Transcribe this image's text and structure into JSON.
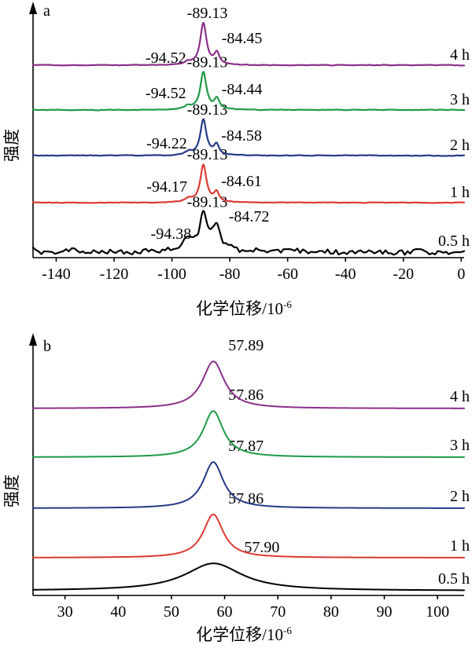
{
  "chart_data": [
    {
      "panel": "a",
      "type": "line",
      "ylabel": "强度",
      "xlabel": {
        "text": "化学位移/10",
        "sup": "-6"
      },
      "xlim": [
        -148,
        1
      ],
      "xticks": [
        -140,
        -120,
        -100,
        -80,
        -60,
        -40,
        -20,
        0
      ],
      "grid": false,
      "series": [
        {
          "name": "4 h",
          "color": "#8B2F8B",
          "peaks": [
            {
              "x": -94.52,
              "label": "-94.52",
              "intensity": 0.06,
              "fwhm": 3.0
            },
            {
              "x": -89.13,
              "label": "-89.13",
              "intensity": 1.0,
              "fwhm": 2.6
            },
            {
              "x": -84.45,
              "label": "-84.45",
              "intensity": 0.28,
              "fwhm": 2.2
            }
          ]
        },
        {
          "name": "3 h",
          "color": "#1F9A48",
          "peaks": [
            {
              "x": -94.52,
              "label": "-94.52",
              "intensity": 0.08,
              "fwhm": 3.0
            },
            {
              "x": -89.13,
              "label": "-89.13",
              "intensity": 0.9,
              "fwhm": 2.6
            },
            {
              "x": -84.44,
              "label": "-84.44",
              "intensity": 0.25,
              "fwhm": 2.2
            }
          ]
        },
        {
          "name": "2 h",
          "color": "#243A86",
          "peaks": [
            {
              "x": -94.22,
              "label": "-94.22",
              "intensity": 0.08,
              "fwhm": 3.0
            },
            {
              "x": -89.13,
              "label": "-89.13",
              "intensity": 0.85,
              "fwhm": 2.6
            },
            {
              "x": -84.58,
              "label": "-84.58",
              "intensity": 0.24,
              "fwhm": 2.2
            }
          ]
        },
        {
          "name": "1 h",
          "color": "#DC3A33",
          "peaks": [
            {
              "x": -94.17,
              "label": "-94.17",
              "intensity": 0.08,
              "fwhm": 3.0
            },
            {
              "x": -89.13,
              "label": "-89.13",
              "intensity": 0.9,
              "fwhm": 2.6
            },
            {
              "x": -84.61,
              "label": "-84.61",
              "intensity": 0.24,
              "fwhm": 2.2
            }
          ]
        },
        {
          "name": "0.5 h",
          "color": "#000000",
          "peaks": [
            {
              "x": -94.38,
              "label": "-94.38",
              "intensity": 0.28,
              "fwhm": 5.0
            },
            {
              "x": -89.13,
              "label": "-89.13",
              "intensity": 0.82,
              "fwhm": 3.0
            },
            {
              "x": -84.72,
              "label": "-84.72",
              "intensity": 0.62,
              "fwhm": 3.5
            }
          ]
        }
      ]
    },
    {
      "panel": "b",
      "type": "line",
      "ylabel": "强度",
      "xlabel": {
        "text": "化学位移/10",
        "sup": "-6"
      },
      "xlim": [
        24,
        105
      ],
      "xticks": [
        30,
        40,
        50,
        60,
        70,
        80,
        90,
        100
      ],
      "grid": false,
      "series": [
        {
          "name": "4 h",
          "color": "#8B2F8B",
          "peaks": [
            {
              "x": 57.89,
              "label": "57.89",
              "intensity": 1.0,
              "fwhm": 5.0
            }
          ]
        },
        {
          "name": "3 h",
          "color": "#1F9A48",
          "peaks": [
            {
              "x": 57.86,
              "label": "57.86",
              "intensity": 0.98,
              "fwhm": 4.6
            }
          ]
        },
        {
          "name": "2 h",
          "color": "#243A86",
          "peaks": [
            {
              "x": 57.87,
              "label": "57.87",
              "intensity": 0.98,
              "fwhm": 4.6
            }
          ]
        },
        {
          "name": "1 h",
          "color": "#DC3A33",
          "peaks": [
            {
              "x": 57.86,
              "label": "57.86",
              "intensity": 0.92,
              "fwhm": 4.6
            }
          ]
        },
        {
          "name": "0.5 h",
          "color": "#000000",
          "peaks": [
            {
              "x": 57.9,
              "label": "57.90",
              "intensity": 0.58,
              "fwhm": 13
            }
          ]
        }
      ]
    }
  ]
}
